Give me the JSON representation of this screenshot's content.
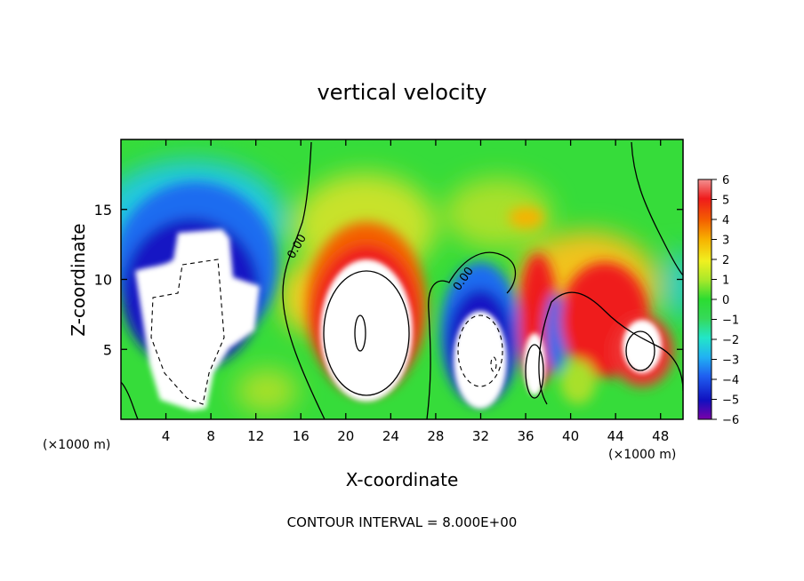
{
  "chart_data": {
    "type": "heatmap",
    "title": "vertical velocity",
    "xlabel": "X-coordinate",
    "ylabel": "Z-coordinate",
    "x_unit_label": "(×1000 m)",
    "x_unit_label_right": "(×1000 m)",
    "footer": "CONTOUR INTERVAL = 8.000E+00",
    "xlim": [
      0,
      50
    ],
    "ylim": [
      0,
      20
    ],
    "x_ticks": [
      "4",
      "8",
      "12",
      "16",
      "20",
      "24",
      "28",
      "32",
      "36",
      "40",
      "44",
      "48"
    ],
    "y_ticks": [
      "5",
      "10",
      "15"
    ],
    "contour_labels": [
      "0.00",
      "0.00"
    ],
    "colorbar": {
      "ticks": [
        "6",
        "5",
        "4",
        "3",
        "2",
        "1",
        "0",
        "−1",
        "−2",
        "−3",
        "−4",
        "−5",
        "−6"
      ],
      "range": [
        -6,
        6
      ],
      "colors": [
        "#7a00a8",
        "#1010c0",
        "#1f5ff0",
        "#21b2f3",
        "#22e6c8",
        "#36d95a",
        "#2bdc31",
        "#a8e82a",
        "#f0f020",
        "#f7b200",
        "#f46000",
        "#ef1b1b",
        "#f39090"
      ]
    },
    "features": [
      {
        "kind": "updraft-max",
        "x": 21.5,
        "z": 6.5
      },
      {
        "kind": "updraft-max",
        "x": 37,
        "z": 4
      },
      {
        "kind": "updraft-max",
        "x": 46,
        "z": 5
      },
      {
        "kind": "downdraft-min",
        "x": 7,
        "z": 8
      },
      {
        "kind": "downdraft-min",
        "x": 31.5,
        "z": 5
      }
    ]
  }
}
